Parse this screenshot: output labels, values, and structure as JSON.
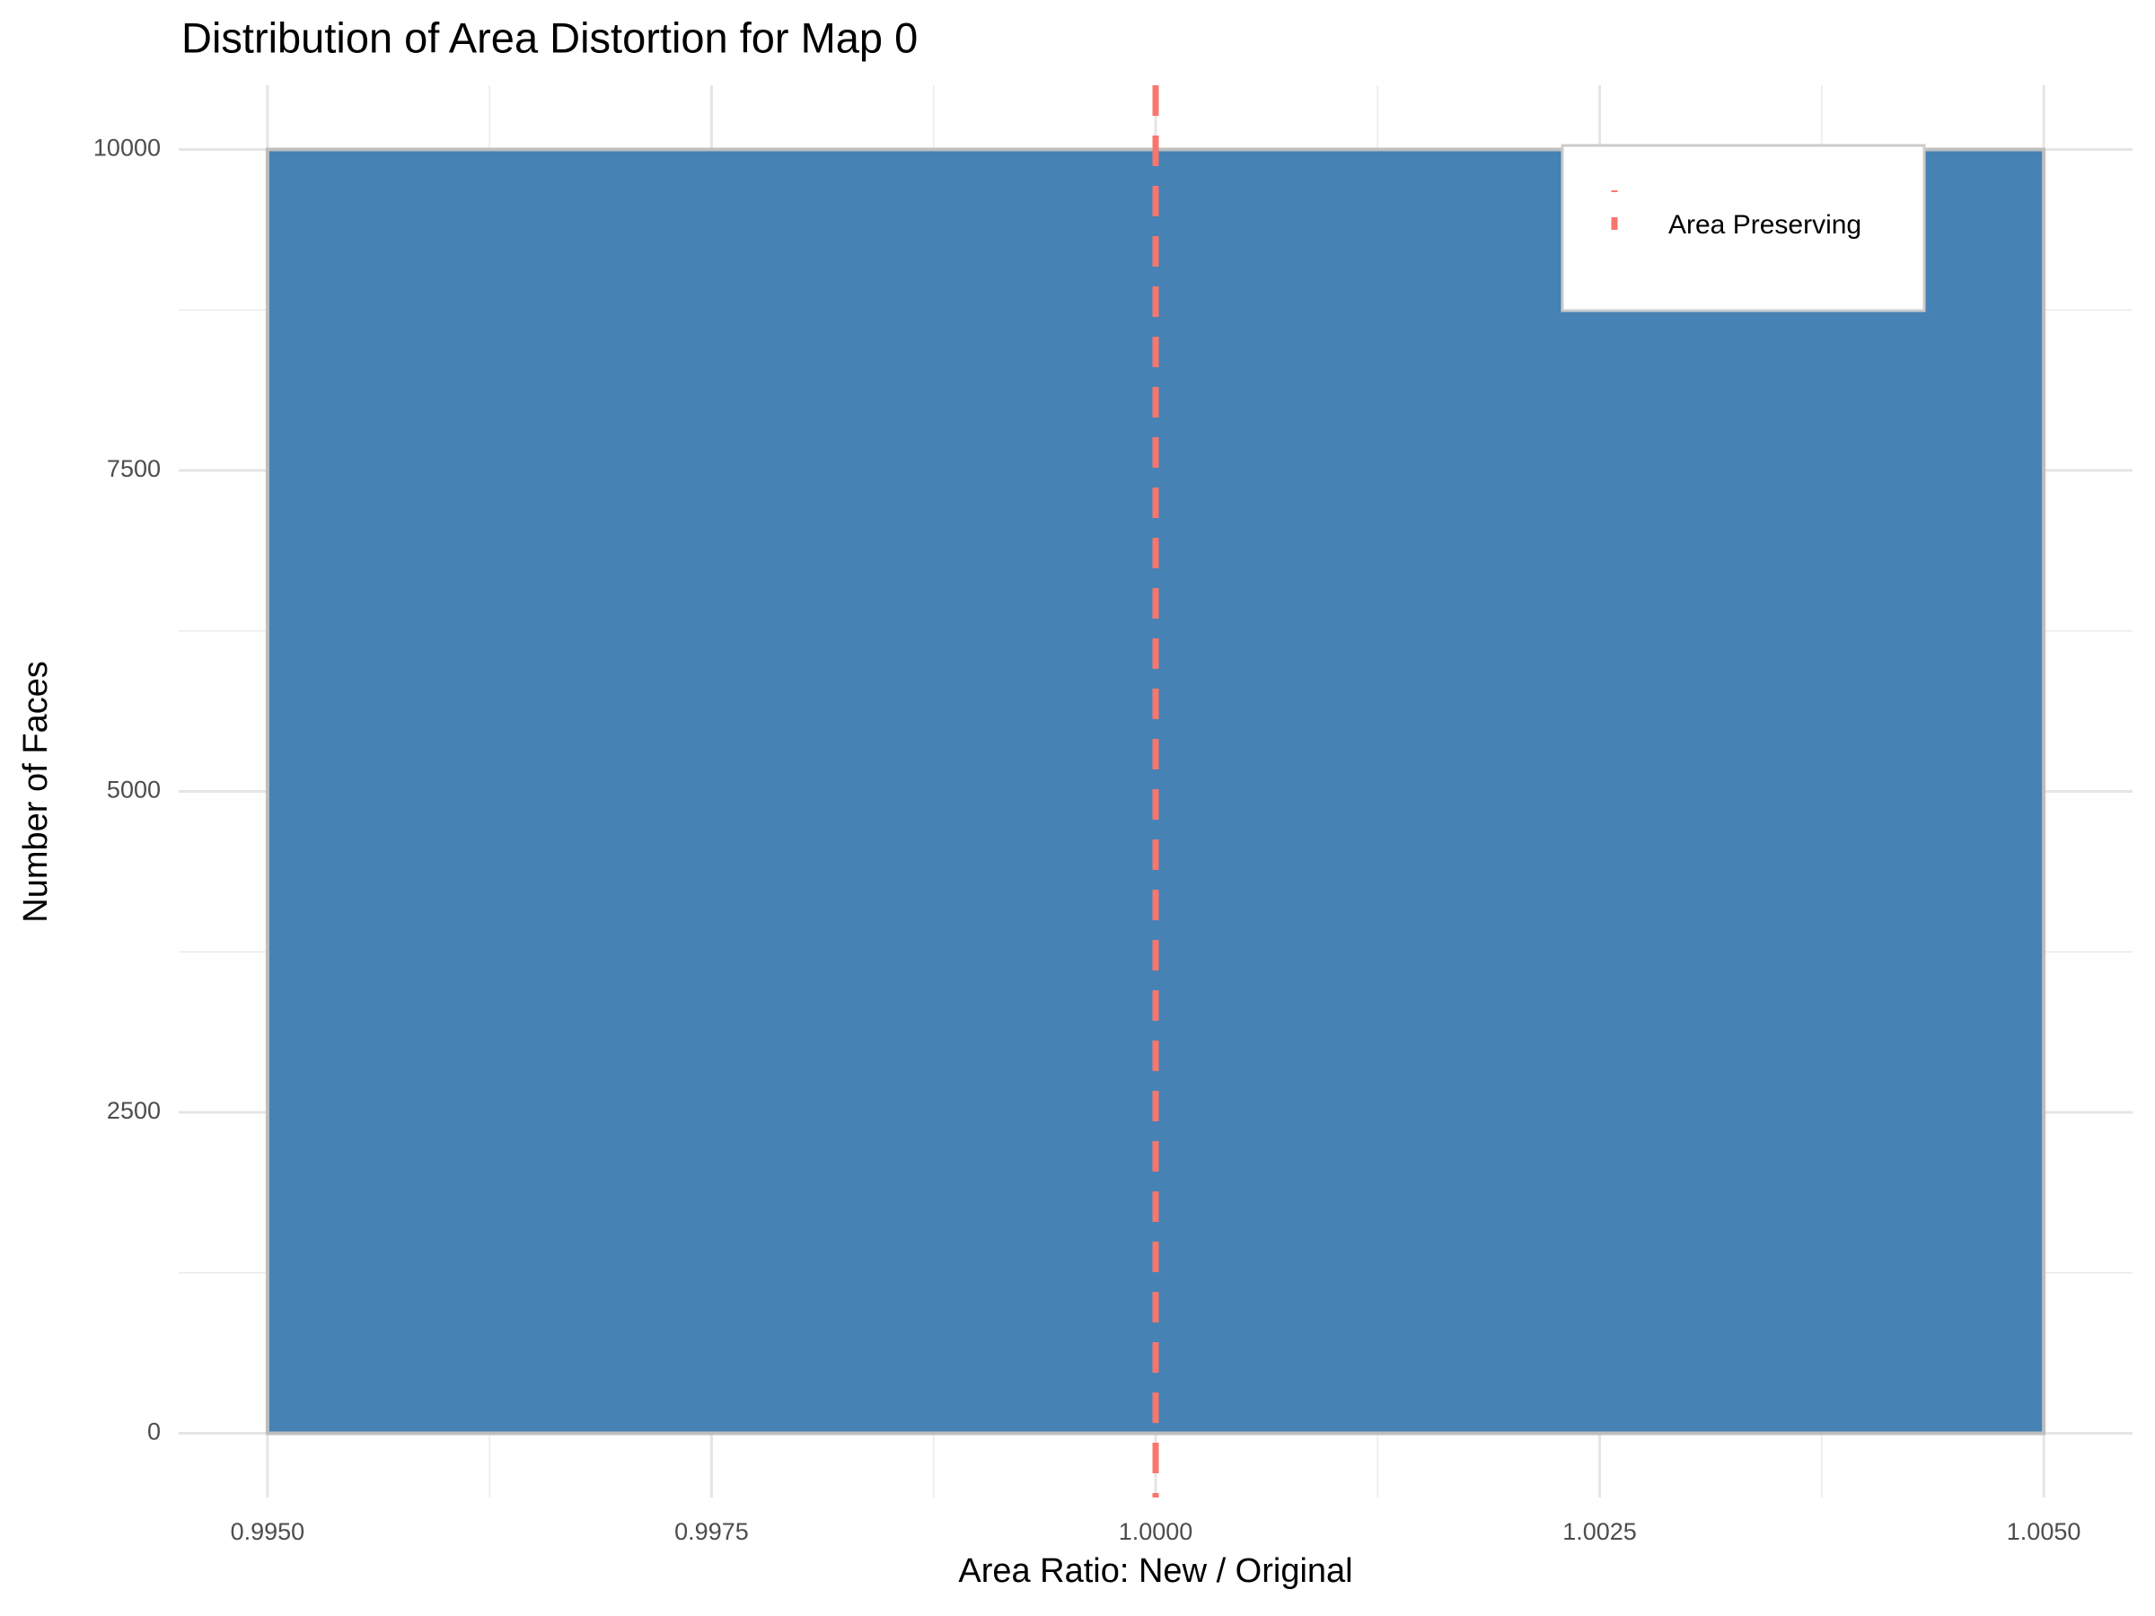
{
  "chart_data": {
    "type": "histogram",
    "title": "Distribution of Area Distortion for Map 0",
    "x_label": "Area Ratio: New / Original",
    "y_label": "Number of Faces",
    "bins": [
      0.995,
      1.005
    ],
    "counts": [
      10000
    ],
    "color": "#4682b4",
    "edge_color": "#bebebe",
    "vlines": [
      {
        "name": "Area Preserving",
        "x": 1,
        "color": "#f8766d",
        "style": "dashed"
      }
    ],
    "xlim": [
      0.9945,
      1.0055
    ],
    "ylim": [
      -500,
      10500
    ],
    "xticks": [
      {
        "value": 0.995,
        "label": "0.9950"
      },
      {
        "value": 0.9975,
        "label": "0.9975"
      },
      {
        "value": 1,
        "label": "1.0000"
      },
      {
        "value": 1.0025,
        "label": "1.0025"
      },
      {
        "value": 1.005,
        "label": "1.0050"
      }
    ],
    "yticks": [
      0,
      2500,
      5000,
      7500,
      10000
    ],
    "grid": true,
    "legend": "top-right"
  }
}
